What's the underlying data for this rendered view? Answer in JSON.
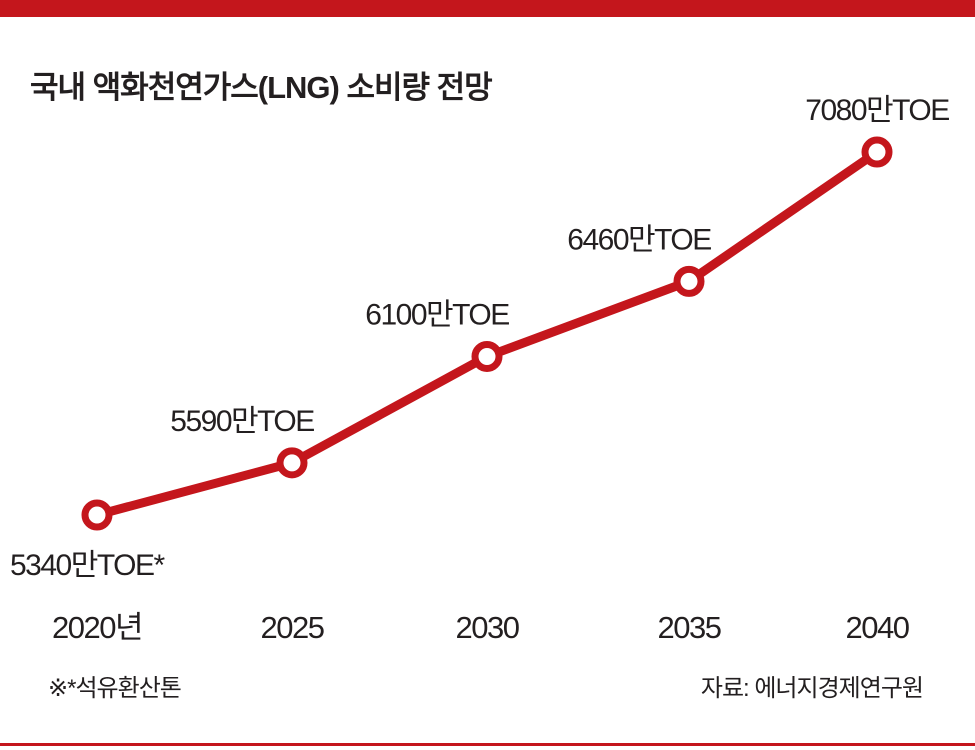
{
  "chart_data": {
    "type": "line",
    "title": "국내 액화천연가스(LNG) 소비량 전망",
    "categories": [
      "2020년",
      "2025",
      "2030",
      "2035",
      "2040"
    ],
    "series": [
      {
        "name": "LNG 소비량",
        "values": [
          5340,
          5590,
          6100,
          6460,
          7080
        ],
        "color": "#c4161c"
      }
    ],
    "data_labels": [
      "5340만TOE*",
      "5590만TOE",
      "6100만TOE",
      "6460만TOE",
      "7080만TOE"
    ],
    "unit": "만TOE",
    "xlabel": "",
    "ylabel": "",
    "grid": false
  },
  "footnote": "※*석유환산톤",
  "source": "자료: 에너지경제연구원",
  "colors": {
    "accent": "#c4161c",
    "text": "#231f20"
  }
}
